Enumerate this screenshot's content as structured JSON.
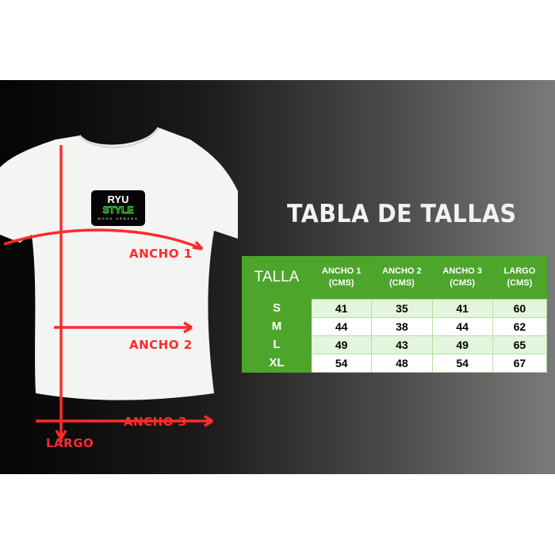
{
  "brand": {
    "name": "RYU",
    "sub": "STYLE",
    "tagline": "MODA URBANA"
  },
  "measure_labels": {
    "ancho1": "ANCHO 1",
    "ancho2": "ANCHO 2",
    "ancho3": "ANCHO 3",
    "largo": "LARGO"
  },
  "title": "TABLA DE TALLAS",
  "table": {
    "headers": [
      "TALLA",
      "ANCHO 1 (CMS)",
      "ANCHO 2 (CMS)",
      "ANCHO 3 (CMS)",
      "LARGO (CMS)"
    ],
    "rows": [
      {
        "size": "S",
        "values": [
          "41",
          "35",
          "41",
          "60"
        ]
      },
      {
        "size": "M",
        "values": [
          "44",
          "38",
          "44",
          "62"
        ]
      },
      {
        "size": "L",
        "values": [
          "49",
          "43",
          "49",
          "65"
        ]
      },
      {
        "size": "XL",
        "values": [
          "54",
          "48",
          "54",
          "67"
        ]
      }
    ]
  },
  "colors": {
    "header_green": "#4ea52c",
    "arrow_red": "#ff2b2b",
    "row_tint": "#e3f5dc"
  }
}
